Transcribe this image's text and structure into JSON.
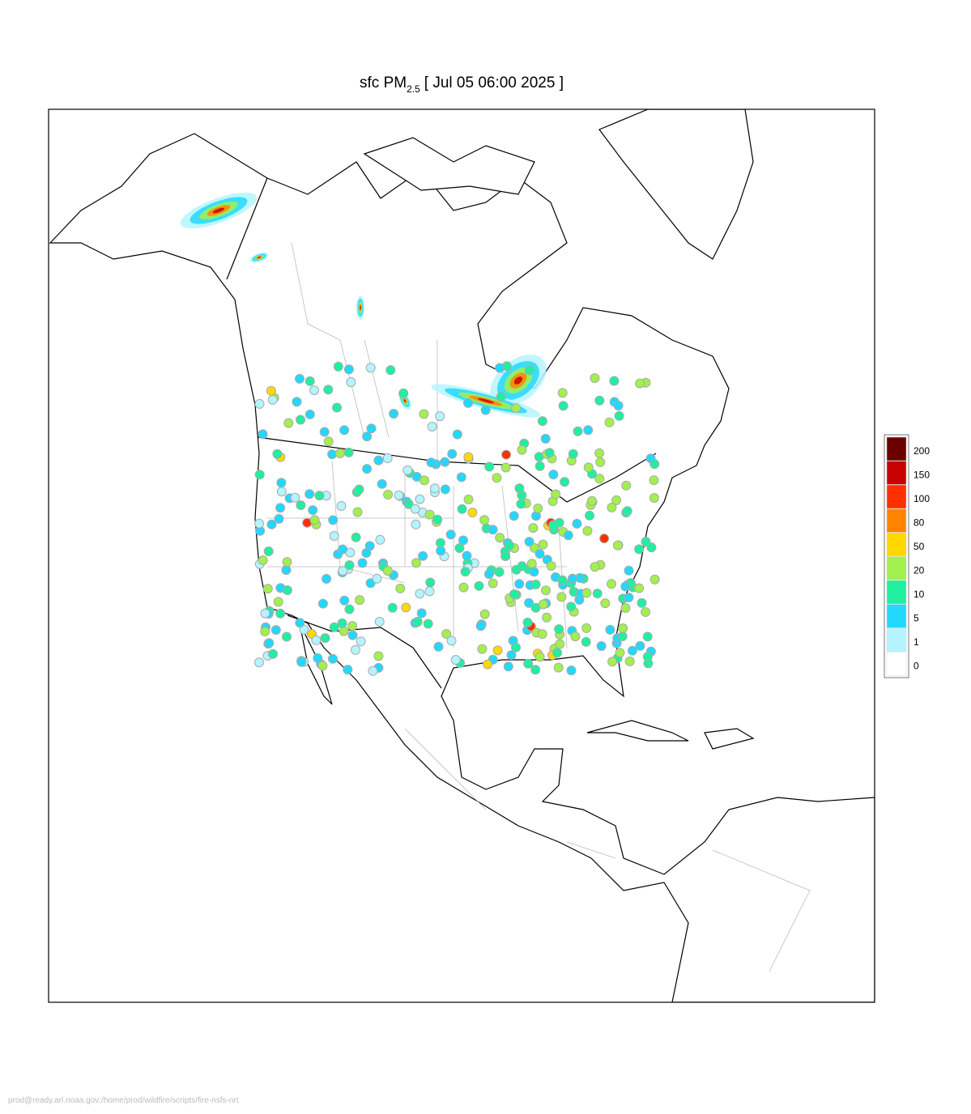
{
  "header": {
    "title_main": "sfc PM",
    "title_sub": "2.5",
    "title_rest": "[ Jul 05 06:00 2025 ]"
  },
  "legend": {
    "levels": [
      {
        "label": "200",
        "color": "#6b0000"
      },
      {
        "label": "150",
        "color": "#c80000"
      },
      {
        "label": "100",
        "color": "#ff3000"
      },
      {
        "label": "80",
        "color": "#ff8200"
      },
      {
        "label": "50",
        "color": "#ffd800"
      },
      {
        "label": "20",
        "color": "#a2f04e"
      },
      {
        "label": "10",
        "color": "#1ef0a0"
      },
      {
        "label": "5",
        "color": "#22d8ff"
      },
      {
        "label": "1",
        "color": "#b4f4ff"
      },
      {
        "label": "0",
        "color": "#ffffff"
      }
    ]
  },
  "footer": {
    "path": "prod@ready.arl.noaa.gov:/home/prod/wildfire/scripts/fire-nsfs-nrt"
  }
}
